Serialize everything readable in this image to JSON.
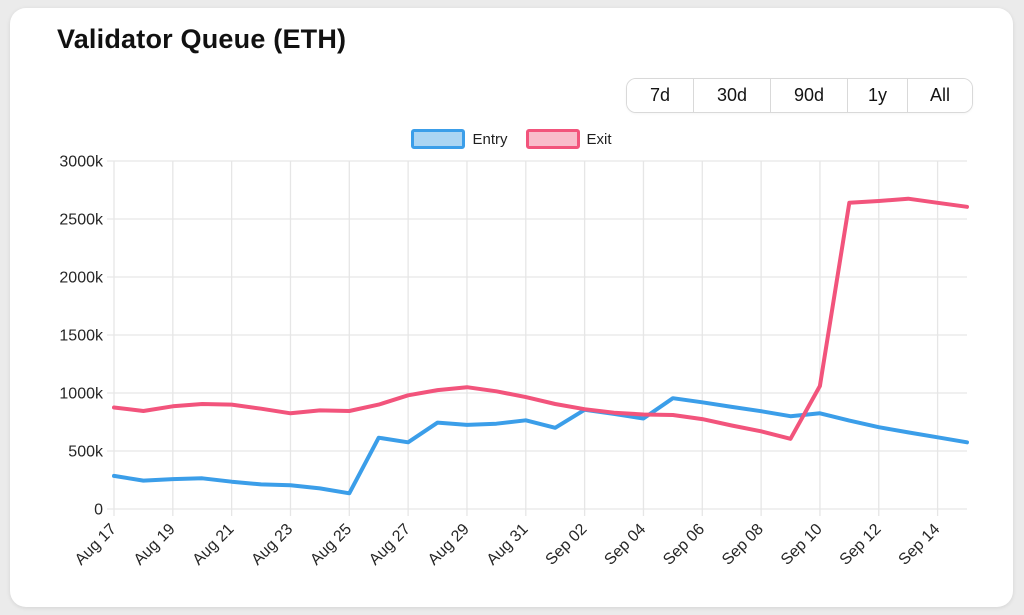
{
  "card": {
    "title": "Validator Queue (ETH)"
  },
  "time_ranges": [
    "7d",
    "30d",
    "90d",
    "1y",
    "All"
  ],
  "colors": {
    "entry_line": "#3b9ee9",
    "entry_fill": "#abd5f3",
    "exit_line": "#f2547c",
    "exit_fill": "#f9bccb",
    "grid": "#e6e6e6",
    "tick_text": "#262626",
    "card_background": "#ffffff",
    "page_background": "#ebebeb"
  },
  "chart_data": {
    "type": "line",
    "title": "Validator Queue (ETH)",
    "unit": "k",
    "x": [
      "Aug 17",
      "Aug 18",
      "Aug 19",
      "Aug 20",
      "Aug 21",
      "Aug 22",
      "Aug 23",
      "Aug 24",
      "Aug 25",
      "Aug 26",
      "Aug 27",
      "Aug 28",
      "Aug 29",
      "Aug 30",
      "Aug 31",
      "Sep 01",
      "Sep 02",
      "Sep 03",
      "Sep 04",
      "Sep 05",
      "Sep 06",
      "Sep 07",
      "Sep 08",
      "Sep 09",
      "Sep 10",
      "Sep 11",
      "Sep 12",
      "Sep 13",
      "Sep 14",
      "Sep 15"
    ],
    "x_label_every": 2,
    "x_label_rotation": -45,
    "series": [
      {
        "name": "Entry",
        "color": "#3b9ee9",
        "fill": "#abd5f3",
        "values": [
          285,
          245,
          258,
          265,
          235,
          212,
          205,
          178,
          135,
          615,
          575,
          745,
          725,
          735,
          765,
          700,
          855,
          820,
          780,
          955,
          920,
          880,
          843,
          800,
          825,
          762,
          705,
          660,
          618,
          575
        ]
      },
      {
        "name": "Exit",
        "color": "#f2547c",
        "fill": "#f9bccb",
        "values": [
          875,
          845,
          885,
          905,
          900,
          865,
          825,
          850,
          845,
          900,
          980,
          1025,
          1050,
          1015,
          965,
          905,
          860,
          830,
          815,
          810,
          775,
          720,
          670,
          605,
          1060,
          2640,
          2655,
          2675,
          2640,
          2605
        ]
      }
    ],
    "ylim": [
      0,
      3000
    ],
    "y_tick_step": 500,
    "y_ticks": [
      "0",
      "500k",
      "1000k",
      "1500k",
      "2000k",
      "2500k",
      "3000k"
    ],
    "grid": true,
    "legend_position": "top"
  }
}
